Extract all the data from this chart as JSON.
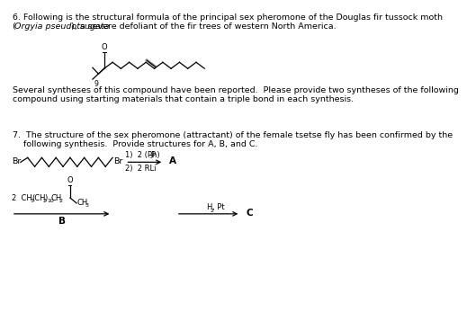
{
  "background_color": "#ffffff",
  "text_color": "#000000",
  "fontsize_main": 6.8,
  "fontsize_small": 6.0,
  "fontsize_label": 7.5,
  "line6_1": "6. Following is the structural formula of the principal sex pheromone of the Douglas fir tussock moth",
  "line6_2a": "(",
  "line6_2b": "Orgyia pseudotsugata",
  "line6_2c": "), a severe defoliant of the fir trees of western North America.",
  "text_several1": "Several syntheses of this compound have been reported.  Please provide two syntheses of the following",
  "text_several2": "compound using starting materials that contain a triple bond in each synthesis.",
  "line7_1": "7.  The structure of the sex pheromone (attractant) of the female tsetse fly has been confirmed by the",
  "line7_2": "    following synthesis.  Provide structures for A, B, and C.",
  "reagent1": "1)  2 (Ph)",
  "reagent1b": "3",
  "reagent1c": "P",
  "reagent2": "2)  2 RLi",
  "reagent3a": "H",
  "reagent3b": "2",
  "reagent3c": ", Pt",
  "label_A": "A",
  "label_B": "B",
  "label_C": "C",
  "label_Br_left": "Br",
  "label_Br_right": "Br",
  "label_2_text": "2  CH",
  "label_2_sub1": "3",
  "label_2_text2": "(CH",
  "label_2_sub2": "2",
  "label_2_text3": ")",
  "label_2_sub3": "10",
  "label_2_text4": "CH",
  "label_2_sub4": "2",
  "label_2_text5": "   CH",
  "label_2_sub5": "3",
  "label_9": "9",
  "label_O": "O"
}
